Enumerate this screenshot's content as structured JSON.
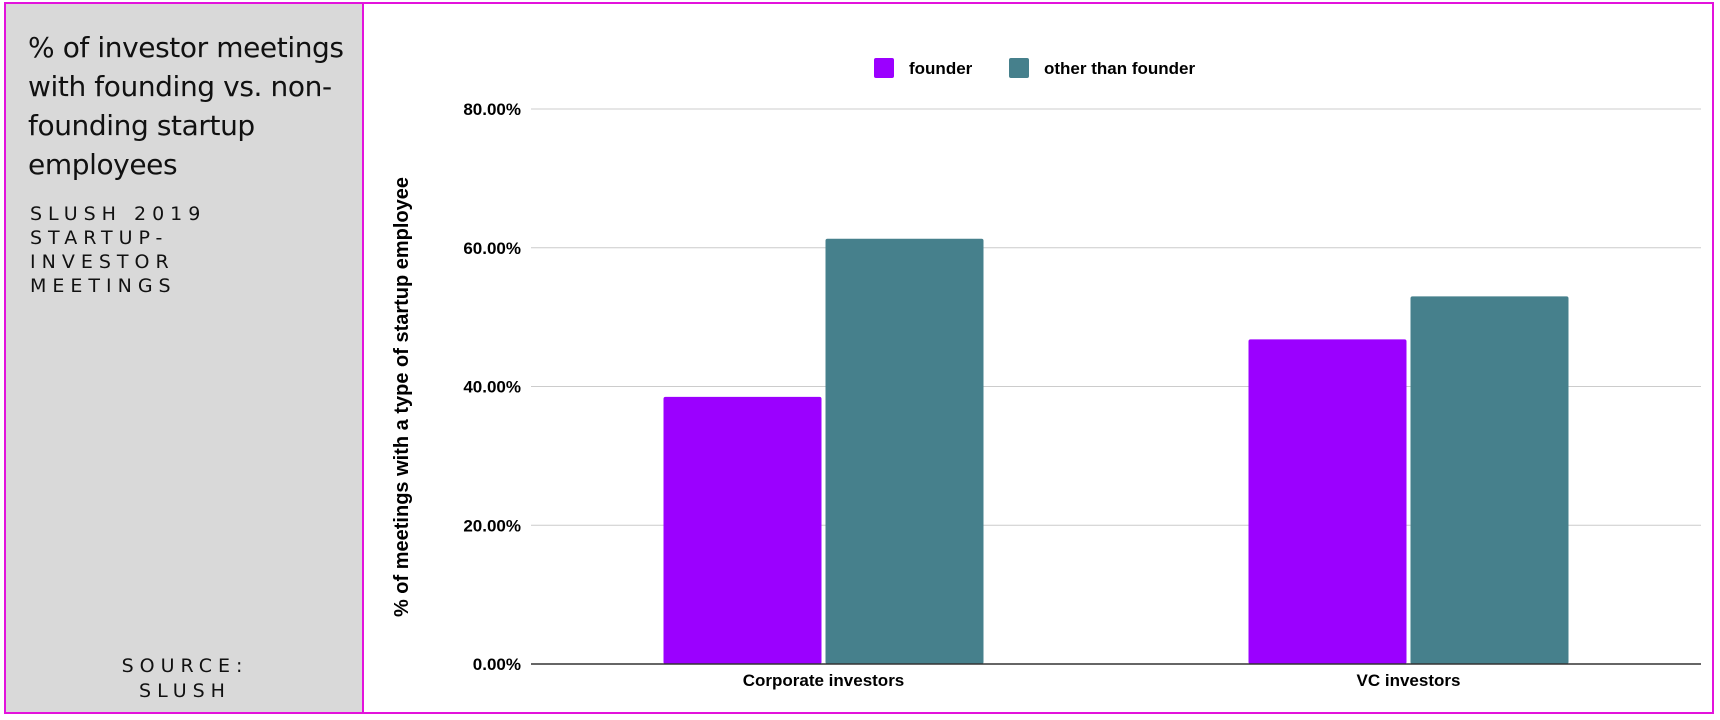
{
  "sidebar": {
    "title": "% of investor meetings with founding vs. non-founding startup employees",
    "subtitle": "SLUSH 2019 STARTUP-INVESTOR MEETINGS",
    "source_line1": "SOURCE:",
    "source_line2": "SLUSH"
  },
  "colors": {
    "founder": "#9b00ff",
    "other": "#46808c",
    "border": "#e313dc",
    "sidebar_bg": "#d9d9d9",
    "grid": "#cccccc"
  },
  "chart_data": {
    "type": "bar",
    "title": "% of investor meetings with founding vs. non-founding startup employees",
    "ylabel": "% of meetings with a type of startup employee",
    "xlabel": "",
    "categories": [
      "Corporate investors",
      "VC investors"
    ],
    "series": [
      {
        "name": "founder",
        "values": [
          38.5,
          46.8
        ]
      },
      {
        "name": "other than founder",
        "values": [
          61.3,
          53.0
        ]
      }
    ],
    "ylim": [
      0,
      80
    ],
    "yticks": [
      "0.00%",
      "20.00%",
      "40.00%",
      "60.00%",
      "80.00%"
    ],
    "grid": true,
    "legend": "top-center"
  }
}
